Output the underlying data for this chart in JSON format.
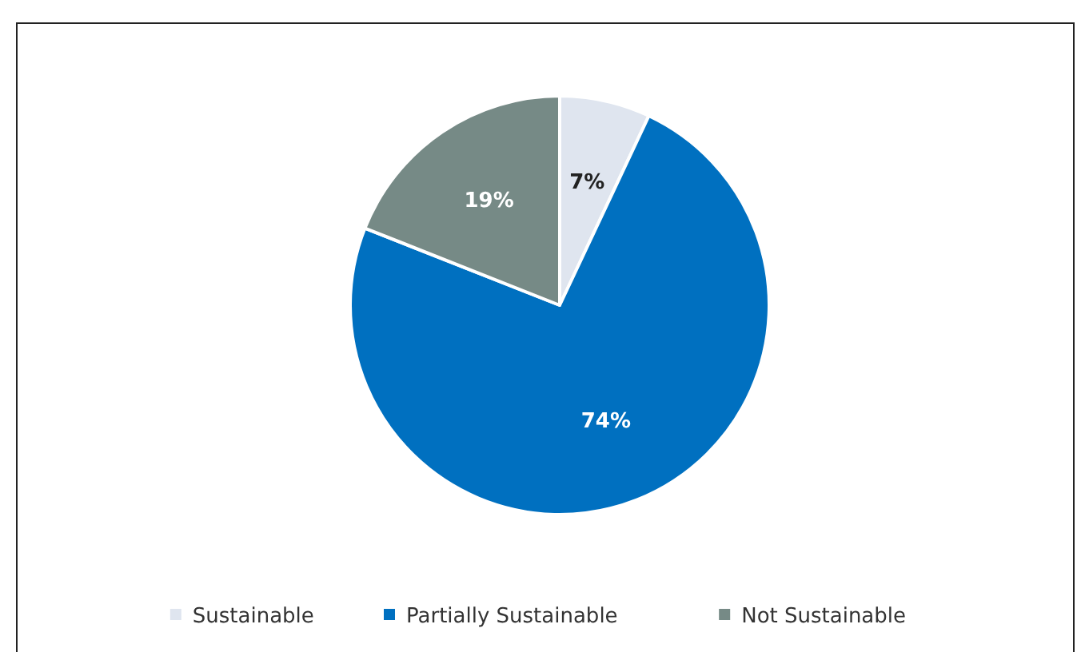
{
  "chart_data": {
    "type": "pie",
    "categories": [
      "Sustainable",
      "Partially Sustainable",
      "Not Sustainable"
    ],
    "values": [
      7,
      74,
      19
    ],
    "colors": [
      "#dfe5ef",
      "#0070c0",
      "#768a86"
    ],
    "value_labels": [
      "7%",
      "74%",
      "19%"
    ],
    "legend": "bottom"
  }
}
